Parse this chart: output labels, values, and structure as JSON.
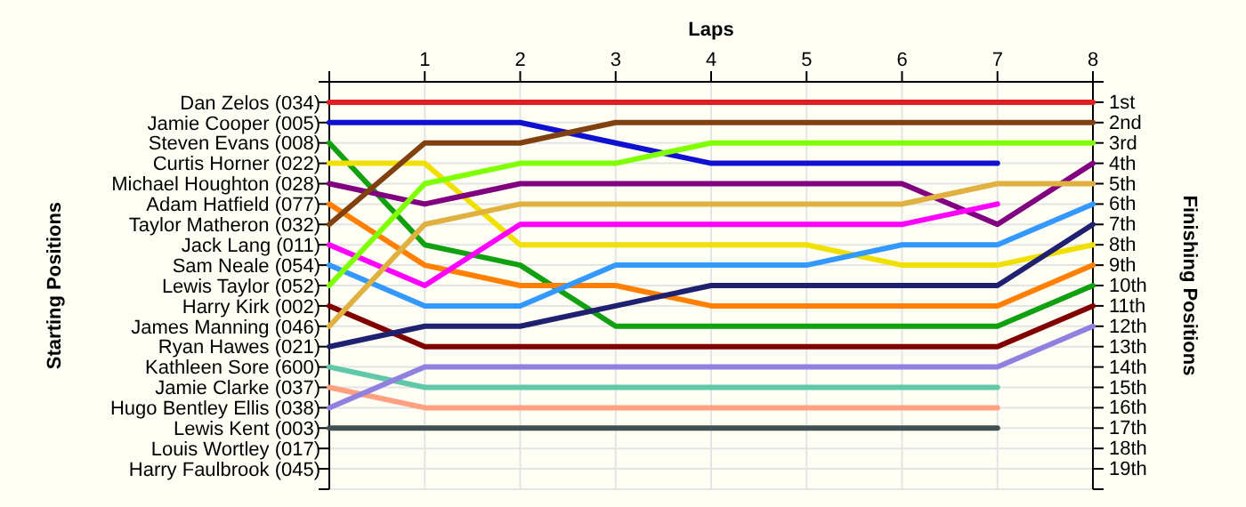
{
  "chart_data": {
    "type": "line",
    "xlabel": "Laps",
    "ylabel": "Finishing Positions",
    "grid": true,
    "marker": "none",
    "line_style": "solid",
    "x": [
      0,
      1,
      2,
      3,
      4,
      5,
      6,
      7,
      8
    ],
    "xlim": [
      0,
      8
    ],
    "xticks": [
      {
        "value": 0,
        "label": null
      },
      1,
      2,
      3,
      4,
      5,
      6,
      7,
      8
    ],
    "ylim": [
      20,
      0
    ],
    "yticks": [
      {
        "value": 0,
        "label": null
      },
      {
        "value": 1,
        "label": "1st"
      },
      {
        "value": 2,
        "label": "2nd"
      },
      {
        "value": 3,
        "label": "3rd"
      },
      {
        "value": 4,
        "label": "4th"
      },
      {
        "value": 5,
        "label": "5th"
      },
      {
        "value": 6,
        "label": "6th"
      },
      {
        "value": 7,
        "label": "7th"
      },
      {
        "value": 8,
        "label": "8th"
      },
      {
        "value": 9,
        "label": "9th"
      },
      {
        "value": 10,
        "label": "10th"
      },
      {
        "value": 11,
        "label": "11th"
      },
      {
        "value": 12,
        "label": "12th"
      },
      {
        "value": 13,
        "label": "13th"
      },
      {
        "value": 14,
        "label": "14th"
      },
      {
        "value": 15,
        "label": "15th"
      },
      {
        "value": 16,
        "label": "16th"
      },
      {
        "value": 17,
        "label": "17th"
      },
      {
        "value": 18,
        "label": "18th"
      },
      {
        "value": 19,
        "label": "19th"
      },
      {
        "value": 20,
        "label": null
      }
    ],
    "annotations": [
      "Starting Positions",
      "Dan Zelos (034)",
      "Jamie Cooper (005)",
      "Steven Evans (008)",
      "Curtis Horner (022)",
      "Michael Houghton (028)",
      "Adam Hatfield (077)",
      "Taylor Matheron (032)",
      "Jack Lang (011)",
      "Sam Neale (054)",
      "Lewis Taylor (052)",
      "Harry Kirk (002)",
      "James Manning (046)",
      "Ryan Hawes (021)",
      "Kathleen Sore (600)",
      "Jamie Clarke (037)",
      "Hugo Bentley Ellis (038)",
      "Lewis Kent (003)",
      "Louis Wortley (017)",
      "Harry Faulbrook (045)"
    ],
    "series": [
      {
        "color": "#e02020",
        "values": [
          1,
          1,
          1,
          1,
          1,
          1,
          1,
          1,
          1
        ]
      },
      {
        "color": "#1010d0",
        "values": [
          2,
          2,
          2,
          3,
          4,
          4,
          4,
          4,
          null
        ]
      },
      {
        "color": "#10a010",
        "values": [
          3,
          8,
          9,
          12,
          12,
          12,
          12,
          12,
          10
        ]
      },
      {
        "color": "#f0e000",
        "values": [
          4,
          4,
          8,
          8,
          8,
          8,
          9,
          9,
          8
        ]
      },
      {
        "color": "#800080",
        "values": [
          5,
          6,
          5,
          5,
          5,
          5,
          5,
          7,
          4
        ]
      },
      {
        "color": "#ff8000",
        "values": [
          6,
          9,
          10,
          10,
          11,
          11,
          11,
          11,
          9
        ]
      },
      {
        "color": "#804010",
        "values": [
          7,
          3,
          3,
          2,
          2,
          2,
          2,
          2,
          2
        ]
      },
      {
        "color": "#ff00ff",
        "values": [
          8,
          10,
          7,
          7,
          7,
          7,
          7,
          6,
          null
        ]
      },
      {
        "color": "#3399ff",
        "values": [
          9,
          11,
          11,
          9,
          9,
          9,
          8,
          8,
          6
        ]
      },
      {
        "color": "#80ff00",
        "values": [
          10,
          5,
          4,
          4,
          3,
          3,
          3,
          3,
          3
        ]
      },
      {
        "color": "#800000",
        "values": [
          11,
          13,
          13,
          13,
          13,
          13,
          13,
          13,
          11
        ]
      },
      {
        "color": "#e0b040",
        "values": [
          12,
          7,
          6,
          6,
          6,
          6,
          6,
          5,
          5
        ]
      },
      {
        "color": "#202070",
        "values": [
          13,
          12,
          12,
          11,
          10,
          10,
          10,
          10,
          7
        ]
      },
      {
        "color": "#60c8a8",
        "values": [
          14,
          15,
          15,
          15,
          15,
          15,
          15,
          15,
          null
        ]
      },
      {
        "color": "#ffa080",
        "values": [
          15,
          16,
          16,
          16,
          16,
          16,
          16,
          16,
          null
        ]
      },
      {
        "color": "#9080e0",
        "values": [
          16,
          14,
          14,
          14,
          14,
          14,
          14,
          14,
          12
        ]
      },
      {
        "color": "#405050",
        "values": [
          17,
          17,
          17,
          17,
          17,
          17,
          17,
          17,
          null
        ]
      }
    ]
  }
}
